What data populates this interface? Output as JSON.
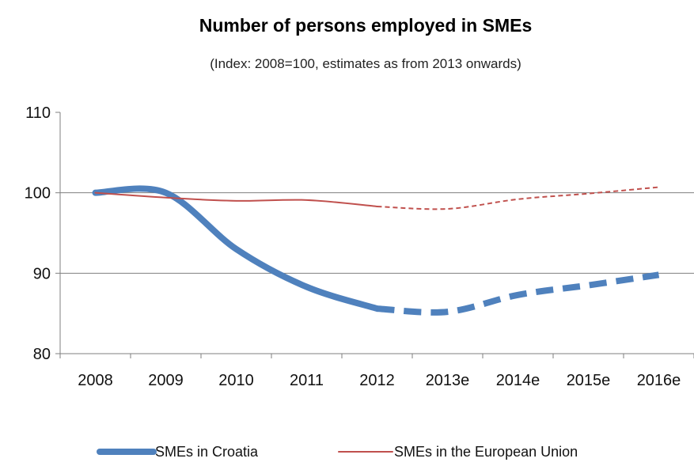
{
  "chart_data": {
    "type": "line",
    "title": "Number of persons employed in SMEs",
    "subtitle": "(Index: 2008=100, estimates as from 2013 onwards)",
    "categories": [
      "2008",
      "2009",
      "2010",
      "2011",
      "2012",
      "2013e",
      "2014e",
      "2015e",
      "2016e"
    ],
    "y_ticks": [
      "80",
      "90",
      "100",
      "110"
    ],
    "ylim": [
      80,
      110
    ],
    "grid": "horizontal lines at 90 and 100",
    "estimate_start": "2013e",
    "series": [
      {
        "name": "SMEs in Croatia",
        "color": "#4F81BD",
        "values": [
          100,
          100,
          93,
          88.3,
          85.6,
          85.2,
          87.3,
          88.5,
          89.8
        ]
      },
      {
        "name": "SMEs in the European Union",
        "color": "#C0504D",
        "values": [
          100,
          99.4,
          99,
          99.1,
          98.3,
          98,
          99.2,
          99.9,
          100.7
        ]
      }
    ],
    "legend_position": "bottom"
  }
}
